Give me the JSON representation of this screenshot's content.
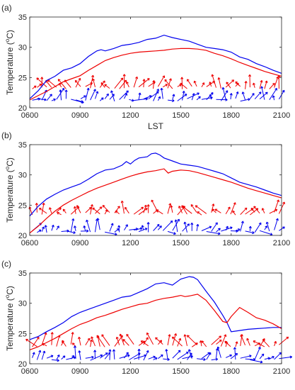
{
  "chart_data": [
    {
      "type": "line",
      "panel_label": "(a)",
      "ylabel": "Temperature (",
      "ylabel_sup": "o",
      "ylabel_unit": "C)",
      "xlabel": "LST",
      "xlim": [
        6,
        21
      ],
      "ylim": [
        20,
        35
      ],
      "xticks": [
        6,
        9,
        12,
        15,
        18,
        21
      ],
      "xtick_labels": [
        "0600",
        "0900",
        "1200",
        "1500",
        "1800",
        "2100"
      ],
      "yticks": [
        20,
        25,
        30,
        35
      ],
      "ytick_labels": [
        "20",
        "25",
        "30",
        "35"
      ],
      "series": [
        {
          "color": "#0000ee",
          "x": [
            6,
            6.5,
            7,
            7.5,
            8,
            8.5,
            9,
            9.5,
            10,
            10.25,
            10.5,
            11,
            11.5,
            12,
            12.5,
            13,
            13.5,
            14,
            14.25,
            14.5,
            15,
            15.5,
            16,
            16.5,
            17,
            17.5,
            18,
            18.5,
            19,
            19.5,
            20,
            20.5,
            21
          ],
          "y": [
            21.5,
            22.8,
            24.5,
            25.2,
            26.2,
            26.6,
            27.3,
            28.5,
            29.4,
            29.6,
            29.4,
            29.8,
            30.3,
            30.5,
            30.8,
            31.3,
            31.5,
            32.0,
            31.8,
            31.6,
            31.3,
            31.0,
            30.5,
            30.0,
            29.8,
            29.6,
            29.2,
            28.4,
            28.0,
            27.3,
            26.8,
            26.2,
            25.7
          ]
        },
        {
          "color": "#ee0000",
          "x": [
            6,
            6.5,
            7,
            7.5,
            8,
            8.5,
            9,
            9.5,
            10,
            10.5,
            11,
            11.5,
            12,
            12.5,
            13,
            13.5,
            14,
            14.5,
            15,
            15.5,
            16,
            16.5,
            17,
            17.5,
            18,
            18.5,
            19,
            19.5,
            20,
            20.5,
            21
          ],
          "y": [
            21.3,
            22.0,
            22.7,
            23.5,
            24.3,
            24.8,
            25.3,
            26.2,
            27.0,
            27.8,
            28.3,
            28.7,
            29.0,
            29.2,
            29.3,
            29.4,
            29.5,
            29.7,
            29.8,
            29.8,
            29.7,
            29.5,
            29.0,
            28.6,
            28.1,
            27.5,
            27.0,
            26.5,
            26.0,
            25.6,
            25.2
          ]
        }
      ],
      "vectors": [
        {
          "color": "#ee0000",
          "base": 23.3
        },
        {
          "color": "#0000ee",
          "base": 21.3
        }
      ]
    },
    {
      "type": "line",
      "panel_label": "(b)",
      "ylabel": "Temperature (",
      "ylabel_sup": "o",
      "ylabel_unit": "C)",
      "xlabel": "",
      "xlim": [
        6,
        21
      ],
      "ylim": [
        20,
        35
      ],
      "xticks": [
        6,
        9,
        12,
        15,
        18,
        21
      ],
      "xtick_labels": [
        "0600",
        "0900",
        "1200",
        "1500",
        "1800",
        "2100"
      ],
      "yticks": [
        20,
        25,
        30,
        35
      ],
      "ytick_labels": [
        "20",
        "25",
        "30",
        "35"
      ],
      "series": [
        {
          "color": "#0000ee",
          "x": [
            6,
            6.5,
            7,
            7.5,
            8,
            8.5,
            9,
            9.5,
            10,
            10.5,
            11,
            11.5,
            11.75,
            12,
            12.25,
            12.5,
            13,
            13.25,
            13.5,
            13.75,
            14,
            14.5,
            15,
            15.5,
            16,
            16.5,
            17,
            17.5,
            18,
            18.5,
            19,
            19.5,
            20,
            20.5,
            21
          ],
          "y": [
            23.2,
            24.8,
            26.0,
            26.8,
            27.5,
            28.0,
            28.5,
            29.3,
            30.2,
            30.8,
            31.0,
            31.6,
            32.2,
            31.8,
            32.4,
            32.8,
            33.0,
            33.5,
            33.6,
            33.3,
            32.8,
            32.3,
            31.8,
            31.6,
            31.4,
            31.0,
            30.6,
            30.2,
            29.5,
            28.8,
            28.4,
            28.0,
            27.5,
            27.0,
            26.6
          ]
        },
        {
          "color": "#ee0000",
          "x": [
            6,
            6.5,
            7,
            7.5,
            8,
            8.5,
            9,
            9.5,
            10,
            10.5,
            11,
            11.5,
            12,
            12.5,
            13,
            13.5,
            14,
            14.25,
            14.5,
            15,
            15.5,
            16,
            16.5,
            17,
            17.5,
            18,
            18.5,
            19,
            19.5,
            20,
            20.5,
            21
          ],
          "y": [
            20.4,
            21.5,
            22.8,
            24.0,
            25.0,
            25.8,
            26.5,
            27.2,
            27.8,
            28.3,
            28.8,
            29.3,
            29.8,
            30.2,
            30.5,
            30.7,
            31.0,
            30.3,
            30.6,
            30.8,
            30.7,
            30.4,
            30.0,
            29.6,
            29.2,
            28.8,
            28.3,
            27.8,
            27.4,
            27.0,
            26.6,
            26.2
          ]
        }
      ],
      "vectors": [
        {
          "color": "#ee0000",
          "base": 23.6
        },
        {
          "color": "#0000ee",
          "base": 20.7
        }
      ]
    },
    {
      "type": "line",
      "panel_label": "(c)",
      "ylabel": "Temperature (",
      "ylabel_sup": "o",
      "ylabel_unit": "C)",
      "xlabel": "",
      "xlim": [
        6,
        21
      ],
      "ylim": [
        20,
        35
      ],
      "xticks": [
        6,
        9,
        12,
        15,
        18,
        21
      ],
      "xtick_labels": [
        "0600",
        "0900",
        "1200",
        "1500",
        "1800",
        "2100"
      ],
      "yticks": [
        20,
        25,
        30,
        35
      ],
      "ytick_labels": [
        "20",
        "25",
        "30",
        "35"
      ],
      "series": [
        {
          "color": "#0000ee",
          "x": [
            6,
            6.5,
            7,
            7.5,
            8,
            8.5,
            9,
            9.5,
            10,
            10.5,
            11,
            11.5,
            12,
            12.5,
            13,
            13.5,
            14,
            14.5,
            15,
            15.5,
            15.75,
            16,
            16.5,
            17,
            17.5,
            17.75,
            18,
            18.5,
            19,
            19.5,
            20,
            20.5,
            21
          ],
          "y": [
            24.0,
            24.5,
            25.3,
            26.0,
            26.8,
            27.8,
            28.5,
            29.0,
            29.5,
            30.0,
            30.5,
            31.0,
            31.2,
            31.8,
            32.4,
            33.2,
            33.4,
            33.0,
            34.0,
            34.4,
            34.3,
            33.9,
            32.0,
            30.2,
            28.0,
            26.8,
            25.3,
            25.5,
            25.7,
            25.8,
            25.9,
            26.0,
            26.0
          ]
        },
        {
          "color": "#ee0000",
          "x": [
            6,
            6.5,
            7,
            7.5,
            8,
            8.5,
            9,
            9.5,
            10,
            10.5,
            11,
            11.5,
            12,
            12.5,
            13,
            13.5,
            14,
            14.5,
            15,
            15.25,
            15.5,
            16,
            16.5,
            17,
            17.5,
            17.75,
            18,
            18.5,
            19,
            19.5,
            20,
            20.5,
            21
          ],
          "y": [
            22.3,
            22.8,
            23.5,
            24.2,
            25.0,
            25.8,
            26.5,
            27.0,
            27.6,
            28.0,
            28.5,
            29.0,
            29.4,
            29.8,
            30.0,
            30.5,
            30.8,
            31.0,
            31.3,
            31.1,
            31.2,
            31.5,
            30.5,
            28.8,
            27.0,
            26.8,
            27.8,
            29.3,
            28.5,
            27.6,
            27.2,
            26.6,
            25.8
          ]
        }
      ],
      "vectors": [
        {
          "color": "#ee0000",
          "base": 23.0
        },
        {
          "color": "#0000ee",
          "base": 20.8
        }
      ]
    }
  ]
}
